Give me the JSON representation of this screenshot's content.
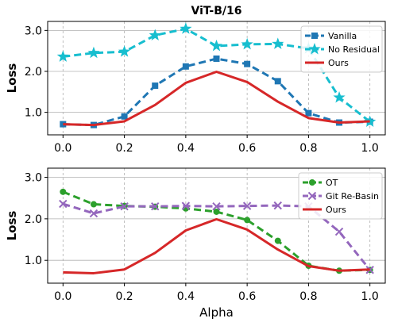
{
  "chart_data": [
    {
      "type": "line",
      "title": "ViT-B/16",
      "xlabel": "",
      "ylabel": "Loss",
      "x": [
        0.0,
        0.1,
        0.2,
        0.3,
        0.4,
        0.5,
        0.6,
        0.7,
        0.8,
        0.9,
        1.0
      ],
      "xlim": [
        -0.05,
        1.05
      ],
      "ylim": [
        0.45,
        3.22
      ],
      "xticks": [
        "0.0",
        "0.2",
        "0.4",
        "0.6",
        "0.8",
        "1.0"
      ],
      "yticks": [
        "1.0",
        "2.0",
        "3.0"
      ],
      "grid": true,
      "legend_position": "top-right",
      "series": [
        {
          "name": "Vanilla",
          "color": "#1f77b4",
          "style": "dashed",
          "marker": "square",
          "values": [
            0.71,
            0.69,
            0.9,
            1.65,
            2.12,
            2.31,
            2.18,
            1.76,
            0.98,
            0.75,
            0.77
          ]
        },
        {
          "name": "No Residual",
          "color": "#17becf",
          "style": "dashed",
          "marker": "star",
          "values": [
            2.36,
            2.45,
            2.48,
            2.88,
            3.04,
            2.62,
            2.66,
            2.67,
            2.56,
            1.36,
            0.77
          ]
        },
        {
          "name": "Ours",
          "color": "#d62728",
          "style": "solid",
          "marker": "none",
          "values": [
            0.71,
            0.69,
            0.78,
            1.18,
            1.72,
            1.99,
            1.74,
            1.26,
            0.86,
            0.75,
            0.78
          ]
        }
      ]
    },
    {
      "type": "line",
      "title": "",
      "xlabel": "Alpha",
      "ylabel": "Loss",
      "x": [
        0.0,
        0.1,
        0.2,
        0.3,
        0.4,
        0.5,
        0.6,
        0.7,
        0.8,
        0.9,
        1.0
      ],
      "xlim": [
        -0.05,
        1.05
      ],
      "ylim": [
        0.45,
        3.22
      ],
      "xticks": [
        "0.0",
        "0.2",
        "0.4",
        "0.6",
        "0.8",
        "1.0"
      ],
      "yticks": [
        "1.0",
        "2.0",
        "3.0"
      ],
      "grid": true,
      "legend_position": "top-right",
      "series": [
        {
          "name": "OT",
          "color": "#2ca02c",
          "style": "dashed",
          "marker": "circle",
          "values": [
            2.65,
            2.35,
            2.31,
            2.29,
            2.25,
            2.17,
            1.97,
            1.47,
            0.87,
            0.75,
            0.77
          ]
        },
        {
          "name": "Git Re-Basin",
          "color": "#9467bd",
          "style": "dashed",
          "marker": "x",
          "values": [
            2.36,
            2.13,
            2.3,
            2.3,
            2.31,
            2.3,
            2.31,
            2.32,
            2.3,
            1.69,
            0.77
          ]
        },
        {
          "name": "Ours",
          "color": "#d62728",
          "style": "solid",
          "marker": "none",
          "values": [
            0.71,
            0.69,
            0.78,
            1.18,
            1.72,
            1.99,
            1.74,
            1.26,
            0.86,
            0.75,
            0.78
          ]
        }
      ]
    }
  ]
}
